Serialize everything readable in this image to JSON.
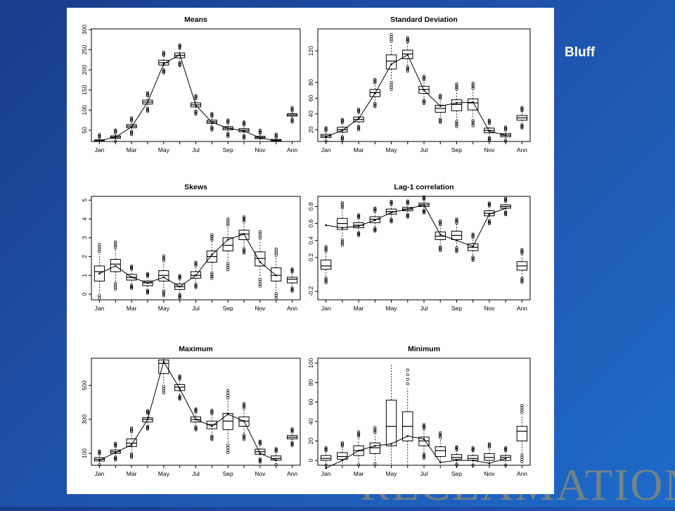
{
  "slide": {
    "label": "Bluff",
    "wordmark": "RECLAMATION"
  },
  "chart_data": [
    {
      "type": "box",
      "title": "Means",
      "categories": [
        "Jan",
        "Feb",
        "Mar",
        "Apr",
        "May",
        "Jun",
        "Jul",
        "Aug",
        "Sep",
        "Oct",
        "Nov",
        "Dec",
        "Ann"
      ],
      "x_tick_labels": [
        "Jan",
        "Mar",
        "May",
        "Jul",
        "Sep",
        "Nov",
        "Ann"
      ],
      "ylim": [
        22,
        302
      ],
      "y_ticks": [
        50,
        100,
        150,
        200,
        250,
        300
      ],
      "medians": [
        24,
        33,
        60,
        120,
        218,
        236,
        113,
        71,
        55,
        50,
        32,
        25,
        88
      ],
      "q1": [
        22,
        30,
        56,
        115,
        212,
        230,
        108,
        67,
        51,
        46,
        29,
        23,
        85
      ],
      "q3": [
        26,
        36,
        64,
        125,
        224,
        242,
        118,
        75,
        59,
        54,
        35,
        27,
        91
      ],
      "observed": [
        24,
        33,
        58,
        120,
        215,
        238,
        112,
        70,
        55,
        48,
        31,
        24,
        null
      ]
    },
    {
      "type": "box",
      "title": "Standard Deviation",
      "categories": [
        "Jan",
        "Feb",
        "Mar",
        "Apr",
        "May",
        "Jun",
        "Jul",
        "Aug",
        "Sep",
        "Oct",
        "Nov",
        "Dec",
        "Ann"
      ],
      "x_tick_labels": [
        "Jan",
        "Mar",
        "May",
        "Jul",
        "Sep",
        "Nov",
        "Ann"
      ],
      "ylim": [
        5,
        148
      ],
      "y_ticks": [
        20,
        40,
        60,
        80,
        120
      ],
      "medians": [
        12,
        20,
        33,
        67,
        107,
        116,
        71,
        47,
        52,
        54,
        19,
        13,
        35
      ],
      "q1": [
        10,
        17,
        30,
        62,
        97,
        110,
        66,
        42,
        44,
        45,
        16,
        11,
        32
      ],
      "q3": [
        14,
        23,
        36,
        71,
        115,
        121,
        75,
        51,
        58,
        59,
        22,
        15,
        38
      ],
      "observed": [
        11,
        19,
        34,
        66,
        103,
        115,
        70,
        50,
        54,
        55,
        18,
        13,
        null
      ]
    },
    {
      "type": "box",
      "title": "Skews",
      "categories": [
        "Jan",
        "Feb",
        "Mar",
        "Apr",
        "May",
        "Jun",
        "Jul",
        "Aug",
        "Sep",
        "Oct",
        "Nov",
        "Dec",
        "Ann"
      ],
      "x_tick_labels": [
        "Jan",
        "Mar",
        "May",
        "Jul",
        "Sep",
        "Nov",
        "Ann"
      ],
      "ylim": [
        -0.3,
        5.2
      ],
      "y_ticks": [
        0,
        1,
        2,
        3,
        4,
        5
      ],
      "medians": [
        1.2,
        1.6,
        0.9,
        0.6,
        1.0,
        0.4,
        1.0,
        2.0,
        2.6,
        3.2,
        1.9,
        1.0,
        0.8
      ],
      "q1": [
        0.7,
        1.2,
        0.75,
        0.45,
        0.7,
        0.25,
        0.85,
        1.7,
        2.3,
        2.9,
        1.5,
        0.7,
        0.6
      ],
      "q3": [
        1.5,
        1.85,
        1.05,
        0.7,
        1.25,
        0.55,
        1.2,
        2.3,
        3.0,
        3.4,
        2.25,
        1.4,
        0.9
      ],
      "observed": [
        1.1,
        1.5,
        0.9,
        0.6,
        0.9,
        0.4,
        1.0,
        2.1,
        2.9,
        3.2,
        1.7,
        1.0,
        null
      ]
    },
    {
      "type": "box",
      "title": "Lag-1 correlation",
      "categories": [
        "Jan",
        "Feb",
        "Mar",
        "Apr",
        "May",
        "Jun",
        "Jul",
        "Aug",
        "Sep",
        "Oct",
        "Nov",
        "Dec",
        "Ann"
      ],
      "x_tick_labels": [
        "Jan",
        "Mar",
        "May",
        "Jul",
        "Sep",
        "Nov",
        "Ann"
      ],
      "ylim": [
        -0.3,
        0.92
      ],
      "y_ticks": [
        -0.2,
        0.2,
        0.4,
        0.6,
        0.8
      ],
      "medians": [
        0.1,
        0.6,
        0.58,
        0.65,
        0.74,
        0.77,
        0.82,
        0.45,
        0.46,
        0.32,
        0.72,
        0.8,
        0.1
      ],
      "q1": [
        0.06,
        0.53,
        0.55,
        0.61,
        0.71,
        0.75,
        0.8,
        0.41,
        0.41,
        0.28,
        0.69,
        0.78,
        0.05
      ],
      "q3": [
        0.17,
        0.66,
        0.61,
        0.68,
        0.77,
        0.79,
        0.84,
        0.5,
        0.51,
        0.36,
        0.75,
        0.82,
        0.15
      ],
      "observed": [
        0.58,
        0.55,
        0.57,
        0.64,
        0.73,
        0.77,
        0.82,
        0.47,
        0.4,
        0.33,
        0.71,
        0.78,
        null
      ]
    },
    {
      "type": "box",
      "title": "Maximum",
      "categories": [
        "Jan",
        "Feb",
        "Mar",
        "Apr",
        "May",
        "Jun",
        "Jul",
        "Aug",
        "Sep",
        "Oct",
        "Nov",
        "Dec",
        "Ann"
      ],
      "x_tick_labels": [
        "Jan",
        "Mar",
        "May",
        "Jul",
        "Sep",
        "Nov",
        "Ann"
      ],
      "ylim": [
        30,
        660
      ],
      "y_ticks": [
        100,
        300,
        500
      ],
      "medians": [
        65,
        110,
        160,
        300,
        630,
        490,
        300,
        270,
        290,
        290,
        110,
        70,
        195
      ],
      "q1": [
        55,
        100,
        140,
        285,
        570,
        470,
        285,
        245,
        240,
        260,
        95,
        60,
        185
      ],
      "q3": [
        75,
        120,
        185,
        310,
        650,
        505,
        315,
        290,
        335,
        315,
        125,
        85,
        205
      ],
      "observed": [
        60,
        105,
        150,
        300,
        640,
        480,
        300,
        260,
        330,
        290,
        100,
        60,
        null
      ]
    },
    {
      "type": "box",
      "title": "Minimum",
      "categories": [
        "Jan",
        "Feb",
        "Mar",
        "Apr",
        "May",
        "Jun",
        "Jul",
        "Aug",
        "Sep",
        "Oct",
        "Nov",
        "Dec",
        "Ann"
      ],
      "x_tick_labels": [
        "Jan",
        "Mar",
        "May",
        "Jul",
        "Sep",
        "Nov",
        "Ann"
      ],
      "ylim": [
        -5,
        105
      ],
      "y_ticks": [
        0,
        20,
        40,
        60,
        80,
        100
      ],
      "medians": [
        2,
        4,
        10,
        13,
        35,
        35,
        20,
        10,
        3,
        2,
        3,
        3,
        30
      ],
      "q1": [
        0,
        1,
        5,
        7,
        15,
        20,
        15,
        4,
        1,
        0,
        0,
        0,
        20
      ],
      "q3": [
        5,
        8,
        15,
        18,
        62,
        50,
        24,
        14,
        6,
        5,
        7,
        5,
        35
      ],
      "observed": [
        -8,
        0,
        10,
        15,
        17,
        25,
        22,
        -2,
        0,
        0,
        -3,
        2,
        null
      ]
    }
  ]
}
